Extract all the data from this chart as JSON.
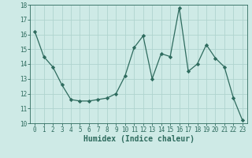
{
  "x": [
    0,
    1,
    2,
    3,
    4,
    5,
    6,
    7,
    8,
    9,
    10,
    11,
    12,
    13,
    14,
    15,
    16,
    17,
    18,
    19,
    20,
    21,
    22,
    23
  ],
  "y": [
    16.2,
    14.5,
    13.8,
    12.6,
    11.6,
    11.5,
    11.5,
    11.6,
    11.7,
    12.0,
    13.2,
    15.1,
    15.9,
    13.0,
    14.7,
    14.5,
    17.8,
    13.5,
    14.0,
    15.3,
    14.4,
    13.8,
    11.7,
    10.2
  ],
  "line_color": "#2e6b5e",
  "marker": "D",
  "marker_size": 2.2,
  "bg_color": "#ceeae6",
  "grid_color": "#afd4cf",
  "xlabel": "Humidex (Indice chaleur)",
  "ylim": [
    10,
    18
  ],
  "xlim": [
    -0.5,
    23.5
  ],
  "yticks": [
    10,
    11,
    12,
    13,
    14,
    15,
    16,
    17,
    18
  ],
  "xticks": [
    0,
    1,
    2,
    3,
    4,
    5,
    6,
    7,
    8,
    9,
    10,
    11,
    12,
    13,
    14,
    15,
    16,
    17,
    18,
    19,
    20,
    21,
    22,
    23
  ],
  "tick_fontsize": 5.5,
  "xlabel_fontsize": 7.0,
  "linewidth": 0.9
}
